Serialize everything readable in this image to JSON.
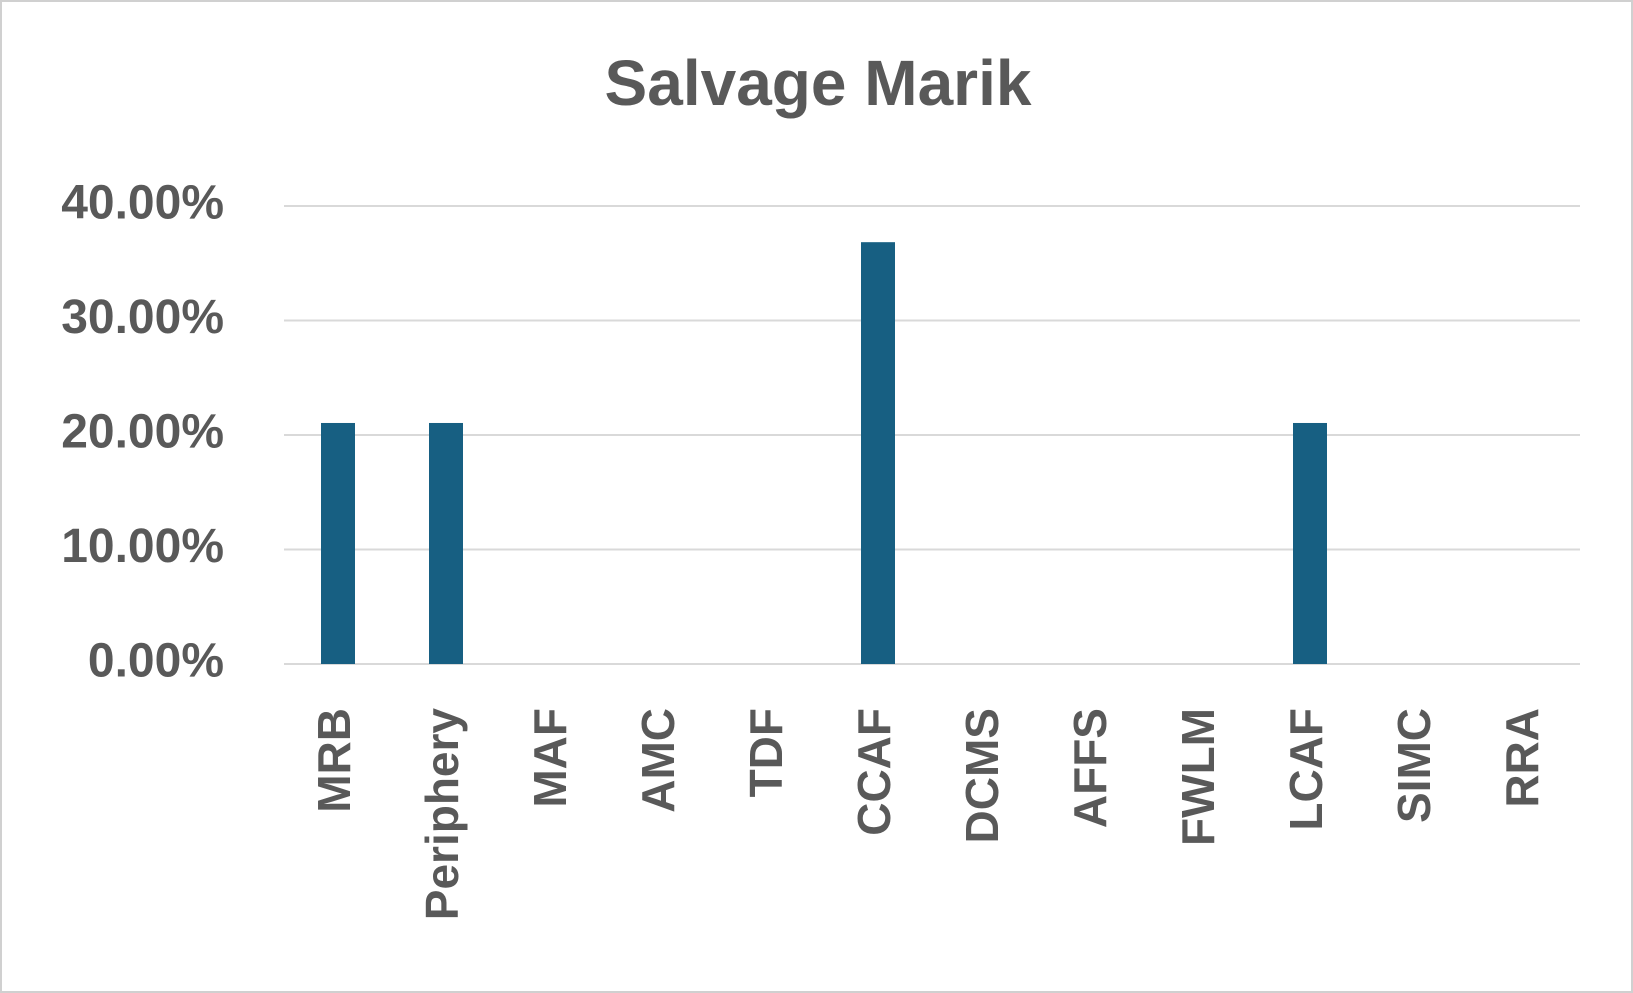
{
  "chart_data": {
    "type": "bar",
    "title": "Salvage Marik",
    "categories": [
      "MRB",
      "Periphery",
      "MAF",
      "AMC",
      "TDF",
      "CCAF",
      "DCMS",
      "AFFS",
      "FWLM",
      "LCAF",
      "SIMC",
      "RRA"
    ],
    "values": [
      21.05,
      21.05,
      0,
      0,
      0,
      36.84,
      0,
      0,
      0,
      21.05,
      0,
      0
    ],
    "color": "#175f82",
    "ylim": [
      0,
      40
    ],
    "yticks": [
      {
        "value": 0,
        "label": "0.00%"
      },
      {
        "value": 10,
        "label": "10.00%"
      },
      {
        "value": 20,
        "label": "20.00%"
      },
      {
        "value": 30,
        "label": "30.00%"
      },
      {
        "value": 40,
        "label": "40.00%"
      }
    ],
    "grid": true
  }
}
